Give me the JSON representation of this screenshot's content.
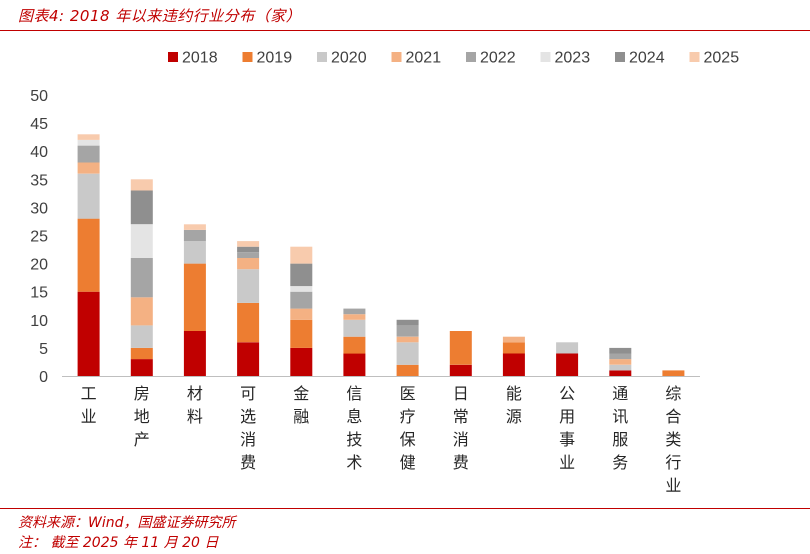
{
  "header": {
    "title": "图表4:  2018 年以来违约行业分布（家）"
  },
  "footer": {
    "source": "资料来源：Wind，国盛证券研究所",
    "note": "注：  截至 2025 年 11 月 20 日"
  },
  "chart_data": {
    "type": "bar",
    "stacked": true,
    "title": "",
    "xlabel": "",
    "ylabel": "",
    "ylim": [
      0,
      50
    ],
    "yticks": [
      0,
      5,
      10,
      15,
      20,
      25,
      30,
      35,
      40,
      45,
      50
    ],
    "grid": false,
    "legend_position": "top",
    "categories": [
      "工业",
      "房地产",
      "材料",
      "可选消费",
      "金融",
      "信息技术",
      "医疗保健",
      "日常消费",
      "能源",
      "公用事业",
      "通讯服务",
      "综合类行业"
    ],
    "series": [
      {
        "name": "2018",
        "color": "#c00000",
        "values": [
          15,
          3,
          8,
          6,
          5,
          4,
          0,
          2,
          4,
          4,
          1,
          0
        ]
      },
      {
        "name": "2019",
        "color": "#ed7d31",
        "values": [
          13,
          2,
          12,
          7,
          5,
          3,
          2,
          6,
          2,
          0,
          0,
          1
        ]
      },
      {
        "name": "2020",
        "color": "#c9c9c9",
        "values": [
          8,
          4,
          4,
          6,
          0,
          3,
          4,
          0,
          0,
          2,
          1,
          0
        ]
      },
      {
        "name": "2021",
        "color": "#f4b183",
        "values": [
          2,
          5,
          0,
          2,
          2,
          1,
          1,
          0,
          1,
          0,
          1,
          0
        ]
      },
      {
        "name": "2022",
        "color": "#a5a5a5",
        "values": [
          3,
          7,
          2,
          1,
          3,
          1,
          2,
          0,
          0,
          0,
          1,
          0
        ]
      },
      {
        "name": "2023",
        "color": "#e4e4e4",
        "values": [
          1,
          6,
          0,
          0,
          1,
          0,
          0,
          0,
          0,
          0,
          0,
          0
        ]
      },
      {
        "name": "2024",
        "color": "#8f8f8f",
        "values": [
          0,
          6,
          0,
          1,
          4,
          0,
          1,
          0,
          0,
          0,
          1,
          0
        ]
      },
      {
        "name": "2025",
        "color": "#f8cbad",
        "values": [
          1,
          2,
          1,
          1,
          3,
          0,
          0,
          0,
          0,
          0,
          0,
          0
        ]
      }
    ]
  }
}
